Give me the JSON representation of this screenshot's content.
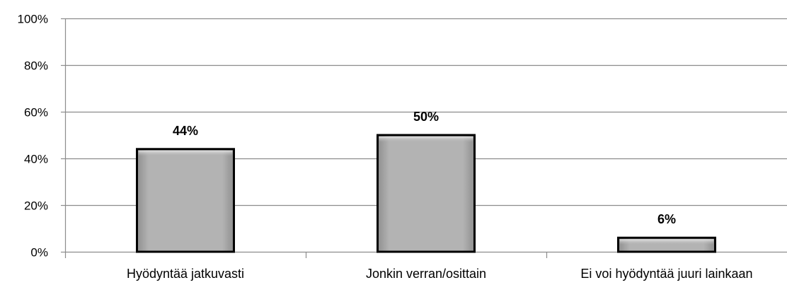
{
  "chart_data": {
    "type": "bar",
    "title": "",
    "xlabel": "",
    "ylabel": "",
    "categories": [
      "Hyödyntää jatkuvasti",
      "Jonkin verran/osittain",
      "Ei voi hyödyntää juuri lainkaan"
    ],
    "values": [
      44,
      50,
      6
    ],
    "data_labels": [
      "44%",
      "50%",
      "6%"
    ],
    "ylim": [
      0,
      100
    ],
    "yticks": [
      0,
      20,
      40,
      60,
      80,
      100
    ],
    "ytick_labels": [
      "0%",
      "20%",
      "40%",
      "60%",
      "80%",
      "100%"
    ],
    "grid": true,
    "legend": "none",
    "bar_color": "#b0b0b0",
    "bar_outline": "#000000",
    "gridline_color": "#8c8c8c"
  }
}
